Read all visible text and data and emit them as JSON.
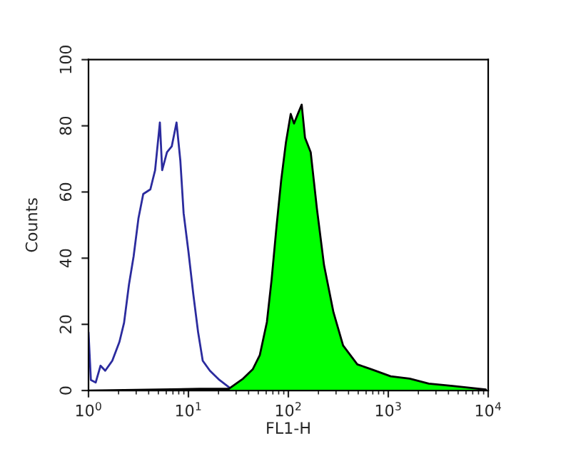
{
  "chart_data": {
    "type": "line",
    "xlabel": "FL1-H",
    "ylabel": "Counts",
    "log": "x",
    "grid": false,
    "xlim": [
      1,
      10000
    ],
    "ylim": [
      0,
      100
    ],
    "xticks": [
      {
        "value": 1,
        "label": "10$^{0}$"
      },
      {
        "value": 10,
        "label": "10$^{1}$"
      },
      {
        "value": 100,
        "label": "10$^{2}$"
      },
      {
        "value": 1000,
        "label": "10$^{3}$"
      },
      {
        "value": 10000,
        "label": "10$^{4}$"
      }
    ],
    "yticks": [
      0,
      20,
      40,
      60,
      80,
      100
    ],
    "series": [
      {
        "color": "#2b2b9e",
        "x": [
          1,
          1.056,
          1.18,
          1.32,
          1.47,
          1.73,
          2.04,
          2.27,
          2.54,
          2.83,
          3.16,
          3.53,
          4.16,
          4.64,
          5.18,
          5.46,
          6.1,
          6.81,
          7.6,
          8.3,
          8.95,
          10,
          11.2,
          12.5,
          13.9,
          16.4,
          20.4,
          25.4
        ],
        "values": [
          17.6,
          3.2,
          2.4,
          7.5,
          6,
          9,
          14.7,
          20.5,
          32,
          40.6,
          52,
          59.4,
          60.8,
          66.6,
          81,
          66.6,
          72,
          73.8,
          81,
          69.5,
          53.6,
          42,
          29,
          17.6,
          9,
          6,
          3.2,
          1
        ]
      },
      {
        "type": "area",
        "color": "#00ff00",
        "x": [
          1,
          12.9,
          25.4,
          35.3,
          44,
          51.8,
          61,
          68,
          76,
          84.8,
          94.6,
          105.6,
          114,
          124.5,
          136,
          146.8,
          167.4,
          193,
          227.5,
          283,
          353,
          490,
          681,
          1057,
          1637,
          2541,
          4395,
          9465
        ],
        "values": [
          0,
          0.5,
          0.5,
          3.6,
          6.4,
          10.7,
          20.7,
          33.6,
          49.3,
          63.6,
          75,
          83.6,
          80.7,
          83.6,
          86.4,
          76.4,
          72,
          55,
          37.9,
          23.6,
          13.6,
          7.9,
          6.4,
          4.3,
          3.6,
          2.1,
          1.4,
          0.3
        ]
      }
    ]
  }
}
